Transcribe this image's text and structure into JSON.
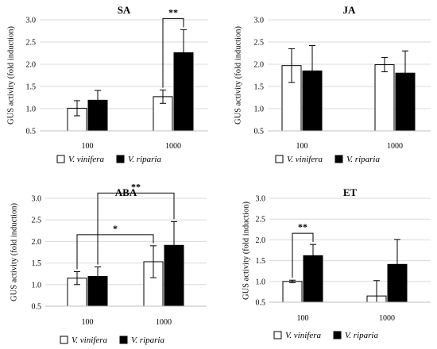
{
  "chart_data": [
    {
      "type": "bar",
      "title": "SA",
      "ylabel": "GUS activity (fold induction)",
      "xlabel": "",
      "ylim": [
        0.5,
        3.0
      ],
      "yticks": [
        "0.5",
        "1.0",
        "1.5",
        "2.0",
        "2.5",
        "3.0"
      ],
      "categories": [
        "100",
        "1000"
      ],
      "series": [
        {
          "name": "V. vinifera",
          "color": "#ffffff",
          "values": [
            1.01,
            1.27
          ],
          "err": [
            0.17,
            0.15
          ]
        },
        {
          "name": "V. riparia",
          "color": "#000000",
          "values": [
            1.19,
            2.26
          ],
          "err": [
            0.22,
            0.52
          ]
        }
      ],
      "significance": [
        {
          "from": [
            1,
            0
          ],
          "to": [
            1,
            1
          ],
          "label": "**"
        }
      ],
      "legend": {
        "position": "bottom",
        "labels": [
          "V. vinifera",
          "V. riparia"
        ]
      }
    },
    {
      "type": "bar",
      "title": "JA",
      "ylabel": "GUS activity (fold induction)",
      "xlabel": "",
      "ylim": [
        0.5,
        3.0
      ],
      "yticks": [
        "0.5",
        "1.0",
        "1.5",
        "2.0",
        "2.5",
        "3.0"
      ],
      "categories": [
        "100",
        "1000"
      ],
      "series": [
        {
          "name": "V. vinifera",
          "color": "#ffffff",
          "values": [
            1.97,
            1.99
          ],
          "err": [
            0.38,
            0.16
          ]
        },
        {
          "name": "V. riparia",
          "color": "#000000",
          "values": [
            1.85,
            1.8
          ],
          "err": [
            0.57,
            0.5
          ]
        }
      ],
      "significance": [],
      "legend": {
        "position": "bottom",
        "labels": [
          "V. vinifera",
          "V. riparia"
        ]
      }
    },
    {
      "type": "bar",
      "title": "ABA",
      "ylabel": "GUS activity (fold induction)",
      "xlabel": "",
      "ylim": [
        0.5,
        3.0
      ],
      "yticks": [
        "0.5",
        "1.0",
        "1.5",
        "2.0",
        "2.5",
        "3.0"
      ],
      "categories": [
        "100",
        "1000"
      ],
      "series": [
        {
          "name": "V. vinifera",
          "color": "#ffffff",
          "values": [
            1.15,
            1.53
          ],
          "err": [
            0.15,
            0.37
          ]
        },
        {
          "name": "V. riparia",
          "color": "#000000",
          "values": [
            1.19,
            1.91
          ],
          "err": [
            0.22,
            0.55
          ]
        }
      ],
      "significance": [
        {
          "from": [
            0,
            0
          ],
          "to": [
            1,
            0
          ],
          "label": "*"
        },
        {
          "from": [
            0,
            1
          ],
          "to": [
            1,
            1
          ],
          "label": "**"
        }
      ],
      "legend": {
        "position": "bottom",
        "labels": [
          "V. vinifera",
          "V. riparia"
        ]
      }
    },
    {
      "type": "bar",
      "title": "ET",
      "ylabel": "GUS activity (fold induction)",
      "xlabel": "",
      "ylim": [
        0.5,
        3.0
      ],
      "yticks": [
        "0.5",
        "1.0",
        "1.5",
        "2.0",
        "2.5",
        "3.0"
      ],
      "categories": [
        "100",
        "1000"
      ],
      "series": [
        {
          "name": "V. vinifera",
          "color": "#ffffff",
          "values": [
            1.0,
            0.65
          ],
          "err": [
            0.03,
            0.37
          ]
        },
        {
          "name": "V. riparia",
          "color": "#000000",
          "values": [
            1.62,
            1.41
          ],
          "err": [
            0.27,
            0.6
          ]
        }
      ],
      "significance": [
        {
          "from": [
            0,
            0
          ],
          "to": [
            0,
            1
          ],
          "label": "**"
        }
      ],
      "legend": {
        "position": "bottom",
        "labels": [
          "V. vinifera",
          "V. riparia"
        ]
      }
    }
  ]
}
